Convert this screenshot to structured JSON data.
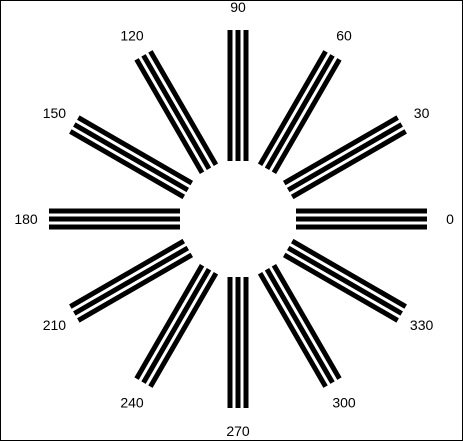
{
  "diagram": {
    "type": "spoke-target",
    "spoke_count": 12,
    "lines_per_spoke": 3,
    "colors": {
      "foreground": "#000000",
      "background": "#ffffff"
    },
    "angles": [
      0,
      30,
      60,
      90,
      120,
      150,
      180,
      210,
      240,
      270,
      300,
      330
    ],
    "labels": [
      "0",
      "30",
      "60",
      "90",
      "120",
      "150",
      "180",
      "210",
      "240",
      "270",
      "300",
      "330"
    ]
  }
}
